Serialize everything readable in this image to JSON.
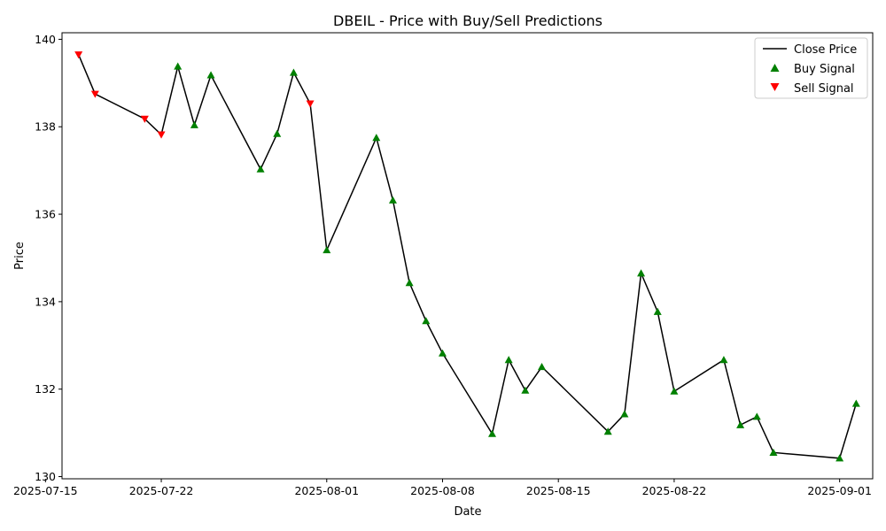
{
  "chart_data": {
    "type": "line",
    "title": "DBEIL - Price with Buy/Sell Predictions",
    "xlabel": "Date",
    "ylabel": "Price",
    "xlim": [
      "2025-07-16",
      "2025-09-03"
    ],
    "ylim": [
      129.95,
      140.15
    ],
    "x_ticks": [
      {
        "date": "2025-07-15",
        "label": "2025-07-15"
      },
      {
        "date": "2025-07-22",
        "label": "2025-07-22"
      },
      {
        "date": "2025-08-01",
        "label": "2025-08-01"
      },
      {
        "date": "2025-08-08",
        "label": "2025-08-08"
      },
      {
        "date": "2025-08-15",
        "label": "2025-08-15"
      },
      {
        "date": "2025-08-22",
        "label": "2025-08-22"
      },
      {
        "date": "2025-09-01",
        "label": "2025-09-01"
      }
    ],
    "y_ticks": [
      130,
      132,
      134,
      136,
      138,
      140
    ],
    "grid": false,
    "legend_position": "top-right",
    "legend": [
      "Close Price",
      "Buy Signal",
      "Sell Signal"
    ],
    "colors": {
      "line": "#000000",
      "buy": "#008000",
      "sell": "#ff0000"
    },
    "series": [
      {
        "name": "Close Price",
        "points": [
          {
            "x": "2025-07-17",
            "y": 139.65,
            "signal": "sell"
          },
          {
            "x": "2025-07-18",
            "y": 138.75,
            "signal": "sell"
          },
          {
            "x": "2025-07-21",
            "y": 138.18,
            "signal": "sell"
          },
          {
            "x": "2025-07-22",
            "y": 137.82,
            "signal": "sell"
          },
          {
            "x": "2025-07-23",
            "y": 139.38,
            "signal": "buy"
          },
          {
            "x": "2025-07-24",
            "y": 138.04,
            "signal": "buy"
          },
          {
            "x": "2025-07-25",
            "y": 139.18,
            "signal": "buy"
          },
          {
            "x": "2025-07-28",
            "y": 137.03,
            "signal": "buy"
          },
          {
            "x": "2025-07-29",
            "y": 137.84,
            "signal": "buy"
          },
          {
            "x": "2025-07-30",
            "y": 139.24,
            "signal": "buy"
          },
          {
            "x": "2025-07-31",
            "y": 138.53,
            "signal": "sell"
          },
          {
            "x": "2025-08-01",
            "y": 135.18,
            "signal": "buy"
          },
          {
            "x": "2025-08-04",
            "y": 137.75,
            "signal": "buy"
          },
          {
            "x": "2025-08-05",
            "y": 136.32,
            "signal": "buy"
          },
          {
            "x": "2025-08-06",
            "y": 134.43,
            "signal": "buy"
          },
          {
            "x": "2025-08-07",
            "y": 133.56,
            "signal": "buy"
          },
          {
            "x": "2025-08-08",
            "y": 132.82,
            "signal": "buy"
          },
          {
            "x": "2025-08-11",
            "y": 130.98,
            "signal": "buy"
          },
          {
            "x": "2025-08-12",
            "y": 132.67,
            "signal": "buy"
          },
          {
            "x": "2025-08-13",
            "y": 131.97,
            "signal": "buy"
          },
          {
            "x": "2025-08-14",
            "y": 132.51,
            "signal": "buy"
          },
          {
            "x": "2025-08-18",
            "y": 131.03,
            "signal": "buy"
          },
          {
            "x": "2025-08-19",
            "y": 131.43,
            "signal": "buy"
          },
          {
            "x": "2025-08-20",
            "y": 134.65,
            "signal": "buy"
          },
          {
            "x": "2025-08-21",
            "y": 133.77,
            "signal": "buy"
          },
          {
            "x": "2025-08-22",
            "y": 131.95,
            "signal": "buy"
          },
          {
            "x": "2025-08-25",
            "y": 132.67,
            "signal": "buy"
          },
          {
            "x": "2025-08-26",
            "y": 131.18,
            "signal": "buy"
          },
          {
            "x": "2025-08-27",
            "y": 131.37,
            "signal": "buy"
          },
          {
            "x": "2025-08-28",
            "y": 130.55,
            "signal": "buy"
          },
          {
            "x": "2025-09-01",
            "y": 130.42,
            "signal": "buy"
          },
          {
            "x": "2025-09-02",
            "y": 131.67,
            "signal": "buy"
          }
        ]
      }
    ]
  }
}
